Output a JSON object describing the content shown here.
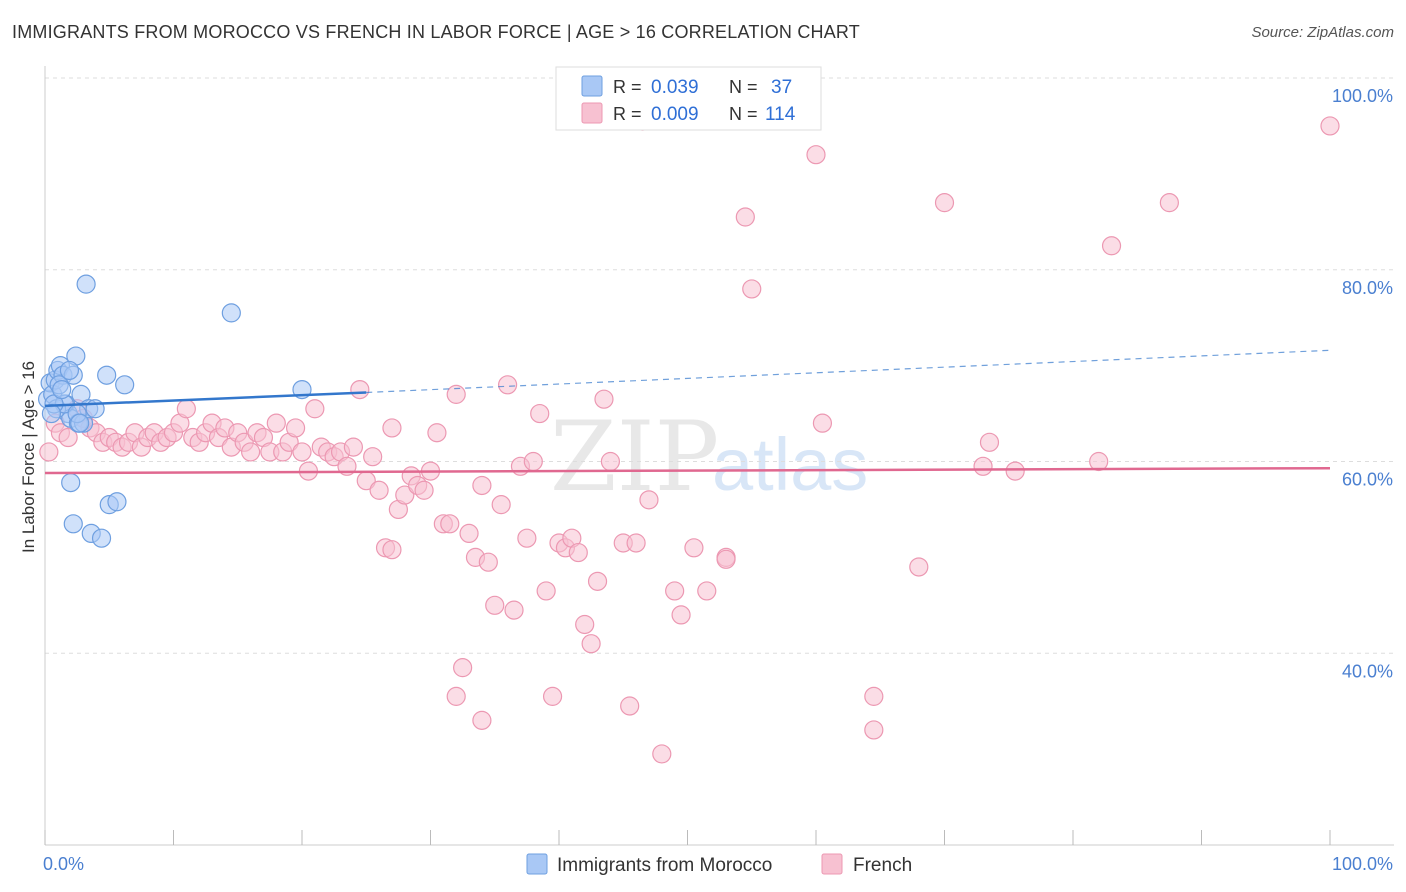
{
  "title": "IMMIGRANTS FROM MOROCCO VS FRENCH IN LABOR FORCE | AGE > 16 CORRELATION CHART",
  "source": "Source: ZipAtlas.com",
  "watermark": {
    "zip": "ZIP",
    "atlas": "atlas"
  },
  "colors": {
    "morocco_fill": "#a9c8f5",
    "morocco_stroke": "#6e9fe0",
    "morocco_line": "#3377cc",
    "french_fill": "#f7c1d1",
    "french_stroke": "#ec98b2",
    "french_line": "#e06890",
    "axis_text": "#4a7fd0",
    "grid": "#dddddd"
  },
  "legend": {
    "rows": [
      {
        "r_label": "R =",
        "r_value": "0.039",
        "n_label": "N =",
        "n_value": "37"
      },
      {
        "r_label": "R =",
        "r_value": "0.009",
        "n_label": "N =",
        "n_value": "114"
      }
    ]
  },
  "chart_data": {
    "type": "scatter",
    "title": "IMMIGRANTS FROM MOROCCO VS FRENCH IN LABOR FORCE | AGE > 16 CORRELATION CHART",
    "xlabel": "",
    "ylabel": "In Labor Force | Age > 16",
    "xlim": [
      0,
      100
    ],
    "ylim": [
      20,
      100
    ],
    "x_tick_labels": [
      "0.0%",
      "100.0%"
    ],
    "y_ticks": [
      40,
      60,
      80,
      100
    ],
    "y_tick_labels": [
      "40.0%",
      "60.0%",
      "80.0%",
      "100.0%"
    ],
    "grid": true,
    "legend_position": "top-center",
    "series": [
      {
        "name": "Immigrants from Morocco",
        "r": 0.039,
        "n": 37,
        "trend": {
          "x0": 0,
          "y0": 65.8,
          "x1": 25,
          "y1": 67.2,
          "dashed_to_x": 100,
          "dashed_to_y": 71.6
        },
        "points": [
          [
            0.2,
            66.5
          ],
          [
            0.4,
            68.2
          ],
          [
            0.6,
            67.0
          ],
          [
            0.8,
            68.5
          ],
          [
            1.0,
            69.5
          ],
          [
            1.2,
            70.0
          ],
          [
            1.4,
            69.0
          ],
          [
            1.6,
            66.0
          ],
          [
            1.8,
            65.0
          ],
          [
            2.0,
            64.5
          ],
          [
            2.2,
            69.0
          ],
          [
            2.4,
            71.0
          ],
          [
            2.6,
            64.0
          ],
          [
            2.8,
            67.0
          ],
          [
            3.0,
            64.0
          ],
          [
            3.2,
            78.5
          ],
          [
            3.4,
            65.5
          ],
          [
            3.6,
            52.5
          ],
          [
            4.4,
            52.0
          ],
          [
            4.8,
            69.0
          ],
          [
            2.0,
            57.8
          ],
          [
            2.2,
            53.5
          ],
          [
            5.0,
            55.5
          ],
          [
            5.6,
            55.8
          ],
          [
            6.2,
            68.0
          ],
          [
            14.5,
            75.5
          ],
          [
            20.0,
            67.5
          ],
          [
            0.9,
            65.5
          ],
          [
            1.5,
            66.0
          ],
          [
            2.5,
            65.0
          ],
          [
            1.1,
            68.0
          ],
          [
            0.7,
            66.0
          ],
          [
            1.9,
            69.5
          ],
          [
            2.7,
            64.0
          ],
          [
            1.3,
            67.5
          ],
          [
            3.9,
            65.5
          ],
          [
            0.5,
            65.0
          ]
        ]
      },
      {
        "name": "French",
        "r": 0.009,
        "n": 114,
        "trend": {
          "x0": 0,
          "y0": 58.8,
          "x1": 100,
          "y1": 59.3
        },
        "points": [
          [
            0.3,
            61.0
          ],
          [
            0.8,
            64.0
          ],
          [
            1.2,
            63.0
          ],
          [
            1.8,
            62.5
          ],
          [
            2.5,
            65.5
          ],
          [
            3.0,
            64.5
          ],
          [
            3.5,
            63.5
          ],
          [
            4.0,
            63.0
          ],
          [
            4.5,
            62.0
          ],
          [
            5.0,
            62.5
          ],
          [
            5.5,
            62.0
          ],
          [
            6.0,
            61.5
          ],
          [
            6.5,
            62.0
          ],
          [
            7.0,
            63.0
          ],
          [
            7.5,
            61.5
          ],
          [
            8.0,
            62.5
          ],
          [
            8.5,
            63.0
          ],
          [
            9.0,
            62.0
          ],
          [
            9.5,
            62.5
          ],
          [
            10.0,
            63.0
          ],
          [
            10.5,
            64.0
          ],
          [
            11.0,
            65.5
          ],
          [
            11.5,
            62.5
          ],
          [
            12.0,
            62.0
          ],
          [
            12.5,
            63.0
          ],
          [
            13.0,
            64.0
          ],
          [
            13.5,
            62.5
          ],
          [
            14.0,
            63.5
          ],
          [
            14.5,
            61.5
          ],
          [
            15.0,
            63.0
          ],
          [
            15.5,
            62.0
          ],
          [
            16.0,
            61.0
          ],
          [
            16.5,
            63.0
          ],
          [
            17.0,
            62.5
          ],
          [
            17.5,
            61.0
          ],
          [
            18.0,
            64.0
          ],
          [
            18.5,
            61.0
          ],
          [
            19.0,
            62.0
          ],
          [
            19.5,
            63.5
          ],
          [
            20.0,
            61.0
          ],
          [
            20.5,
            59.0
          ],
          [
            21.0,
            65.5
          ],
          [
            21.5,
            61.5
          ],
          [
            22.0,
            61.0
          ],
          [
            22.5,
            60.5
          ],
          [
            23.0,
            61.0
          ],
          [
            23.5,
            59.5
          ],
          [
            24.0,
            61.5
          ],
          [
            24.5,
            67.5
          ],
          [
            25.0,
            58.0
          ],
          [
            25.5,
            60.5
          ],
          [
            26.0,
            57.0
          ],
          [
            26.5,
            51.0
          ],
          [
            27.0,
            63.5
          ],
          [
            27.5,
            55.0
          ],
          [
            28.0,
            56.5
          ],
          [
            28.5,
            58.5
          ],
          [
            29.0,
            57.5
          ],
          [
            29.5,
            57.0
          ],
          [
            30.0,
            59.0
          ],
          [
            30.5,
            63.0
          ],
          [
            31.0,
            53.5
          ],
          [
            31.5,
            53.5
          ],
          [
            32.0,
            67.0
          ],
          [
            33.0,
            52.5
          ],
          [
            33.5,
            50.0
          ],
          [
            34.0,
            57.5
          ],
          [
            34.5,
            49.5
          ],
          [
            35.0,
            45.0
          ],
          [
            35.5,
            55.5
          ],
          [
            36.0,
            68.0
          ],
          [
            36.5,
            44.5
          ],
          [
            37.0,
            59.5
          ],
          [
            37.5,
            52.0
          ],
          [
            38.0,
            60.0
          ],
          [
            38.5,
            65.0
          ],
          [
            39.0,
            46.5
          ],
          [
            40.0,
            51.5
          ],
          [
            40.5,
            51.0
          ],
          [
            41.0,
            52.0
          ],
          [
            41.5,
            50.5
          ],
          [
            42.0,
            43.0
          ],
          [
            42.5,
            41.0
          ],
          [
            43.0,
            47.5
          ],
          [
            43.5,
            66.5
          ],
          [
            44.0,
            60.0
          ],
          [
            45.0,
            51.5
          ],
          [
            45.5,
            34.5
          ],
          [
            46.0,
            51.5
          ],
          [
            46.5,
            95.5
          ],
          [
            47.0,
            56.0
          ],
          [
            48.0,
            29.5
          ],
          [
            49.0,
            46.5
          ],
          [
            49.5,
            44.0
          ],
          [
            50.5,
            51.0
          ],
          [
            51.5,
            46.5
          ],
          [
            53.0,
            50.0
          ],
          [
            54.5,
            85.5
          ],
          [
            55.0,
            78.0
          ],
          [
            60.0,
            92.0
          ],
          [
            60.5,
            64.0
          ],
          [
            64.5,
            35.5
          ],
          [
            64.5,
            32.0
          ],
          [
            68.0,
            49.0
          ],
          [
            70.0,
            87.0
          ],
          [
            73.0,
            59.5
          ],
          [
            73.5,
            62.0
          ],
          [
            75.5,
            59.0
          ],
          [
            82.0,
            60.0
          ],
          [
            83.0,
            82.5
          ],
          [
            87.5,
            87.0
          ],
          [
            100.0,
            95.0
          ],
          [
            32.5,
            38.5
          ],
          [
            34.0,
            33.0
          ],
          [
            32.0,
            35.5
          ],
          [
            39.5,
            35.5
          ],
          [
            27.0,
            50.8
          ],
          [
            53.0,
            49.8
          ]
        ]
      }
    ]
  },
  "bottom_legend": {
    "items": [
      {
        "label": "Immigrants from Morocco"
      },
      {
        "label": "French"
      }
    ]
  }
}
